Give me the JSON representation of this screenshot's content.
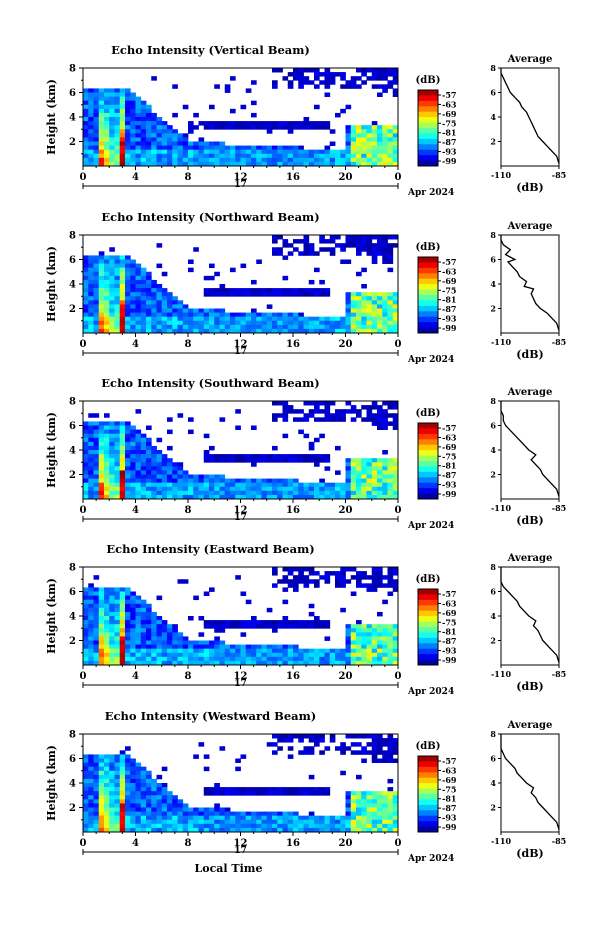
{
  "chart_data": [
    {
      "type": "heatmap",
      "title": "Echo Intensity (Vertical Beam)",
      "ylabel": "Height (km)",
      "colorbar_label": "(dB)",
      "colorbar_ticks": [
        "-57",
        "-63",
        "-69",
        "-75",
        "-81",
        "-87",
        "-93",
        "-99"
      ],
      "x_ticks": [
        "0",
        "4",
        "8",
        "12",
        "16",
        "20",
        "0"
      ],
      "y_ticks": [
        "8",
        "6",
        "4",
        "2"
      ],
      "day_label": "17",
      "date_label": "Apr 2024",
      "xlim": [
        0,
        24
      ],
      "ylim": [
        0,
        8
      ],
      "zlim": [
        -99,
        -57
      ],
      "profile": {
        "title": "Average",
        "xlabel": "(dB)",
        "x_ticks": [
          "-110",
          "-85"
        ],
        "y_ticks": [
          "8",
          "6",
          "4",
          "2"
        ],
        "xlim": [
          -110,
          -85
        ],
        "ylim": [
          0,
          8
        ],
        "points": [
          [
            -85,
            0.2
          ],
          [
            -86,
            0.8
          ],
          [
            -88,
            1.2
          ],
          [
            -90,
            1.6
          ],
          [
            -92,
            2.0
          ],
          [
            -94,
            2.4
          ],
          [
            -95,
            2.8
          ],
          [
            -96,
            3.2
          ],
          [
            -97,
            3.6
          ],
          [
            -98,
            4.0
          ],
          [
            -99,
            4.4
          ],
          [
            -101,
            4.8
          ],
          [
            -102,
            5.2
          ],
          [
            -104,
            5.6
          ],
          [
            -106,
            6.0
          ],
          [
            -107,
            6.4
          ],
          [
            -108,
            6.8
          ],
          [
            -109,
            7.2
          ],
          [
            -110,
            7.6
          ],
          [
            -110,
            8.0
          ]
        ]
      }
    },
    {
      "type": "heatmap",
      "title": "Echo Intensity (Northward Beam)",
      "ylabel": "Height (km)",
      "colorbar_label": "(dB)",
      "colorbar_ticks": [
        "-57",
        "-63",
        "-69",
        "-75",
        "-81",
        "-87",
        "-93",
        "-99"
      ],
      "x_ticks": [
        "0",
        "4",
        "8",
        "12",
        "16",
        "20",
        "0"
      ],
      "y_ticks": [
        "8",
        "6",
        "4",
        "2"
      ],
      "day_label": "17",
      "date_label": "Apr 2024",
      "xlim": [
        0,
        24
      ],
      "ylim": [
        0,
        8
      ],
      "zlim": [
        -99,
        -57
      ],
      "profile": {
        "title": "Average",
        "xlabel": "(dB)",
        "x_ticks": [
          "-110",
          "-85"
        ],
        "y_ticks": [
          "8",
          "6",
          "4",
          "2"
        ],
        "xlim": [
          -110,
          -85
        ],
        "ylim": [
          0,
          8
        ],
        "points": [
          [
            -85,
            0.2
          ],
          [
            -86,
            0.8
          ],
          [
            -88,
            1.2
          ],
          [
            -90,
            1.6
          ],
          [
            -93,
            2.0
          ],
          [
            -95,
            2.4
          ],
          [
            -96,
            2.8
          ],
          [
            -97,
            3.2
          ],
          [
            -96,
            3.6
          ],
          [
            -100,
            3.8
          ],
          [
            -99,
            4.2
          ],
          [
            -102,
            4.6
          ],
          [
            -103,
            5.0
          ],
          [
            -105,
            5.4
          ],
          [
            -107,
            5.8
          ],
          [
            -104,
            6.0
          ],
          [
            -108,
            6.4
          ],
          [
            -106,
            6.8
          ],
          [
            -109,
            7.2
          ],
          [
            -110,
            7.6
          ],
          [
            -110,
            8.0
          ]
        ]
      }
    },
    {
      "type": "heatmap",
      "title": "Echo Intensity (Southward Beam)",
      "ylabel": "Height (km)",
      "colorbar_label": "(dB)",
      "colorbar_ticks": [
        "-57",
        "-63",
        "-69",
        "-75",
        "-81",
        "-87",
        "-93",
        "-99"
      ],
      "x_ticks": [
        "0",
        "4",
        "8",
        "12",
        "16",
        "20",
        "0"
      ],
      "y_ticks": [
        "8",
        "6",
        "4",
        "2"
      ],
      "day_label": "17",
      "date_label": "Apr 2024",
      "xlim": [
        0,
        24
      ],
      "ylim": [
        0,
        8
      ],
      "zlim": [
        -99,
        -57
      ],
      "profile": {
        "title": "Average",
        "xlabel": "(dB)",
        "x_ticks": [
          "-110",
          "-85"
        ],
        "y_ticks": [
          "8",
          "6",
          "4",
          "2"
        ],
        "xlim": [
          -110,
          -85
        ],
        "ylim": [
          0,
          8
        ],
        "points": [
          [
            -85,
            0.2
          ],
          [
            -86,
            0.8
          ],
          [
            -88,
            1.2
          ],
          [
            -90,
            1.6
          ],
          [
            -92,
            2.0
          ],
          [
            -93,
            2.4
          ],
          [
            -95,
            2.8
          ],
          [
            -97,
            3.2
          ],
          [
            -95,
            3.6
          ],
          [
            -98,
            4.0
          ],
          [
            -100,
            4.4
          ],
          [
            -102,
            4.8
          ],
          [
            -104,
            5.2
          ],
          [
            -106,
            5.6
          ],
          [
            -108,
            6.0
          ],
          [
            -109,
            6.4
          ],
          [
            -109,
            6.8
          ],
          [
            -110,
            7.2
          ],
          [
            -110,
            7.6
          ],
          [
            -110,
            8.0
          ]
        ]
      }
    },
    {
      "type": "heatmap",
      "title": "Echo Intensity (Eastward Beam)",
      "ylabel": "Height (km)",
      "colorbar_label": "(dB)",
      "colorbar_ticks": [
        "-57",
        "-63",
        "-69",
        "-75",
        "-81",
        "-87",
        "-93",
        "-99"
      ],
      "x_ticks": [
        "0",
        "4",
        "8",
        "12",
        "16",
        "20",
        "0"
      ],
      "y_ticks": [
        "8",
        "6",
        "4",
        "2"
      ],
      "day_label": "17",
      "date_label": "Apr 2024",
      "xlim": [
        0,
        24
      ],
      "ylim": [
        0,
        8
      ],
      "zlim": [
        -99,
        -57
      ],
      "profile": {
        "title": "Average",
        "xlabel": "(dB)",
        "x_ticks": [
          "-110",
          "-85"
        ],
        "y_ticks": [
          "8",
          "6",
          "4",
          "2"
        ],
        "xlim": [
          -110,
          -85
        ],
        "ylim": [
          0,
          8
        ],
        "points": [
          [
            -85,
            0.2
          ],
          [
            -86,
            0.8
          ],
          [
            -88,
            1.2
          ],
          [
            -90,
            1.6
          ],
          [
            -92,
            2.0
          ],
          [
            -93,
            2.4
          ],
          [
            -94,
            2.8
          ],
          [
            -96,
            3.2
          ],
          [
            -95,
            3.6
          ],
          [
            -98,
            4.0
          ],
          [
            -100,
            4.4
          ],
          [
            -102,
            4.8
          ],
          [
            -103,
            5.2
          ],
          [
            -105,
            5.6
          ],
          [
            -107,
            6.0
          ],
          [
            -109,
            6.4
          ],
          [
            -110,
            6.8
          ],
          [
            -110,
            7.2
          ],
          [
            -110,
            7.6
          ],
          [
            -110,
            8.0
          ]
        ]
      }
    },
    {
      "type": "heatmap",
      "title": "Echo Intensity (Westward Beam)",
      "ylabel": "Height (km)",
      "xlabel": "Local Time",
      "colorbar_label": "(dB)",
      "colorbar_ticks": [
        "-57",
        "-63",
        "-69",
        "-75",
        "-81",
        "-87",
        "-93",
        "-99"
      ],
      "x_ticks": [
        "0",
        "4",
        "8",
        "12",
        "16",
        "20",
        "0"
      ],
      "y_ticks": [
        "8",
        "6",
        "4",
        "2"
      ],
      "day_label": "17",
      "date_label": "Apr 2024",
      "xlim": [
        0,
        24
      ],
      "ylim": [
        0,
        8
      ],
      "zlim": [
        -99,
        -57
      ],
      "profile": {
        "title": "Average",
        "xlabel": "(dB)",
        "x_ticks": [
          "-110",
          "-85"
        ],
        "y_ticks": [
          "8",
          "6",
          "4",
          "2"
        ],
        "xlim": [
          -110,
          -85
        ],
        "ylim": [
          0,
          8
        ],
        "points": [
          [
            -85,
            0.2
          ],
          [
            -86,
            0.8
          ],
          [
            -88,
            1.2
          ],
          [
            -90,
            1.6
          ],
          [
            -92,
            2.0
          ],
          [
            -94,
            2.4
          ],
          [
            -95,
            2.8
          ],
          [
            -97,
            3.2
          ],
          [
            -96,
            3.6
          ],
          [
            -99,
            4.0
          ],
          [
            -101,
            4.4
          ],
          [
            -103,
            4.8
          ],
          [
            -104,
            5.2
          ],
          [
            -106,
            5.6
          ],
          [
            -108,
            6.0
          ],
          [
            -109,
            6.4
          ],
          [
            -110,
            6.8
          ],
          [
            -110,
            7.2
          ],
          [
            -110,
            7.6
          ],
          [
            -110,
            8.0
          ]
        ]
      }
    }
  ]
}
